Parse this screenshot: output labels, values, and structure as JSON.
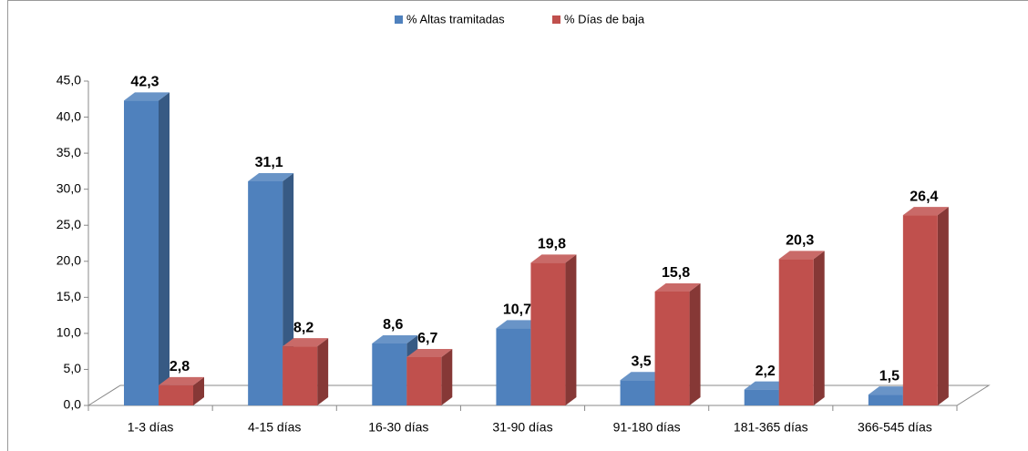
{
  "chart_data": {
    "type": "bar3d",
    "categories": [
      "1-3 días",
      "4-15 días",
      "16-30 días",
      "31-90 días",
      "91-180 días",
      "181-365 días",
      "366-545 días"
    ],
    "series": [
      {
        "name": "% Altas tramitadas",
        "color": "#4f81bd",
        "values": [
          42.3,
          31.1,
          8.6,
          10.7,
          3.5,
          2.2,
          1.5
        ],
        "value_labels": [
          "42,3",
          "31,1",
          "8,6",
          "10,7",
          "3,5",
          "2,2",
          "1,5"
        ]
      },
      {
        "name": "% Días de baja",
        "color": "#c0504d",
        "values": [
          2.8,
          8.2,
          6.7,
          19.8,
          15.8,
          20.3,
          26.4
        ],
        "value_labels": [
          "2,8",
          "8,2",
          "6,7",
          "19,8",
          "15,8",
          "20,3",
          "26,4"
        ]
      }
    ],
    "ylim": [
      0,
      45
    ],
    "yticks": [
      {
        "value": 0,
        "label": "0,0"
      },
      {
        "value": 5,
        "label": "5,0"
      },
      {
        "value": 10,
        "label": "10,0"
      },
      {
        "value": 15,
        "label": "15,0"
      },
      {
        "value": 20,
        "label": "20,0"
      },
      {
        "value": 25,
        "label": "25,0"
      },
      {
        "value": 30,
        "label": "30,0"
      },
      {
        "value": 35,
        "label": "35,0"
      },
      {
        "value": 40,
        "label": "40,0"
      },
      {
        "value": 45,
        "label": "45,0"
      }
    ],
    "legend": "top"
  }
}
